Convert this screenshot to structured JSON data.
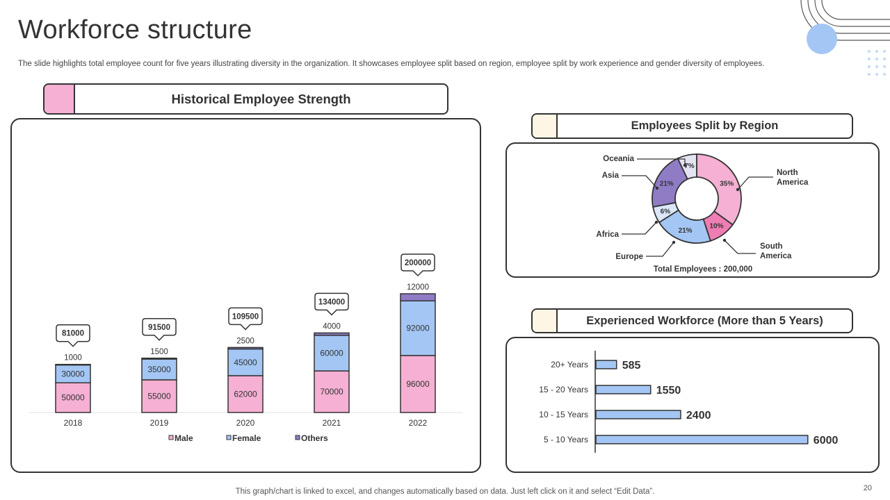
{
  "page": {
    "title": "Workforce structure",
    "subtitle": "The slide highlights total employee count for five years illustrating diversity in the organization. It showcases employee split based on region, employee split by work experience and gender diversity of employees.",
    "footer": "This graph/chart is linked to excel, and changes automatically based on data. Just left click on it and select “Edit Data”.",
    "page_number": "20"
  },
  "colors": {
    "male": "#f5b0d3",
    "female": "#a4c6f4",
    "others": "#8f7cc5",
    "border": "#333333",
    "pink_swatch": "#f5b0d3",
    "cream_swatch": "#fdf6e4",
    "accent_circle": "#a4c6f4"
  },
  "sections": {
    "historical": "Historical Employee Strength",
    "region": "Employees Split by Region",
    "experience": "Experienced Workforce  (More than 5 Years)"
  },
  "chart_data": [
    {
      "type": "bar",
      "stacked": true,
      "categories": [
        "2018",
        "2019",
        "2020",
        "2021",
        "2022"
      ],
      "series": [
        {
          "name": "Male",
          "values": [
            50000,
            55000,
            62000,
            70000,
            96000
          ]
        },
        {
          "name": "Female",
          "values": [
            30000,
            35000,
            45000,
            60000,
            92000
          ]
        },
        {
          "name": "Others",
          "values": [
            1000,
            1500,
            2500,
            4000,
            12000
          ]
        }
      ],
      "totals": [
        "81000",
        "91500",
        "109500",
        "134000",
        "200000"
      ],
      "legend": "bottom"
    },
    {
      "type": "pie",
      "donut": true,
      "total_label": "Total Employees : 200,000",
      "slices": [
        {
          "label": "North America",
          "value": 35,
          "display": "35%"
        },
        {
          "label": "South America",
          "value": 10,
          "display": "10%"
        },
        {
          "label": "Europe",
          "value": 21,
          "display": "21%"
        },
        {
          "label": "Africa",
          "value": 6,
          "display": "6%"
        },
        {
          "label": "Asia",
          "value": 21,
          "display": "21%"
        },
        {
          "label": "Oceania",
          "value": 7,
          "display": "7%"
        }
      ]
    },
    {
      "type": "bar",
      "orientation": "horizontal",
      "categories": [
        "20+ Years",
        "15 - 20 Years",
        "10 - 15 Years",
        "5 - 10 Years"
      ],
      "values": [
        585,
        1550,
        2400,
        6000
      ]
    }
  ]
}
